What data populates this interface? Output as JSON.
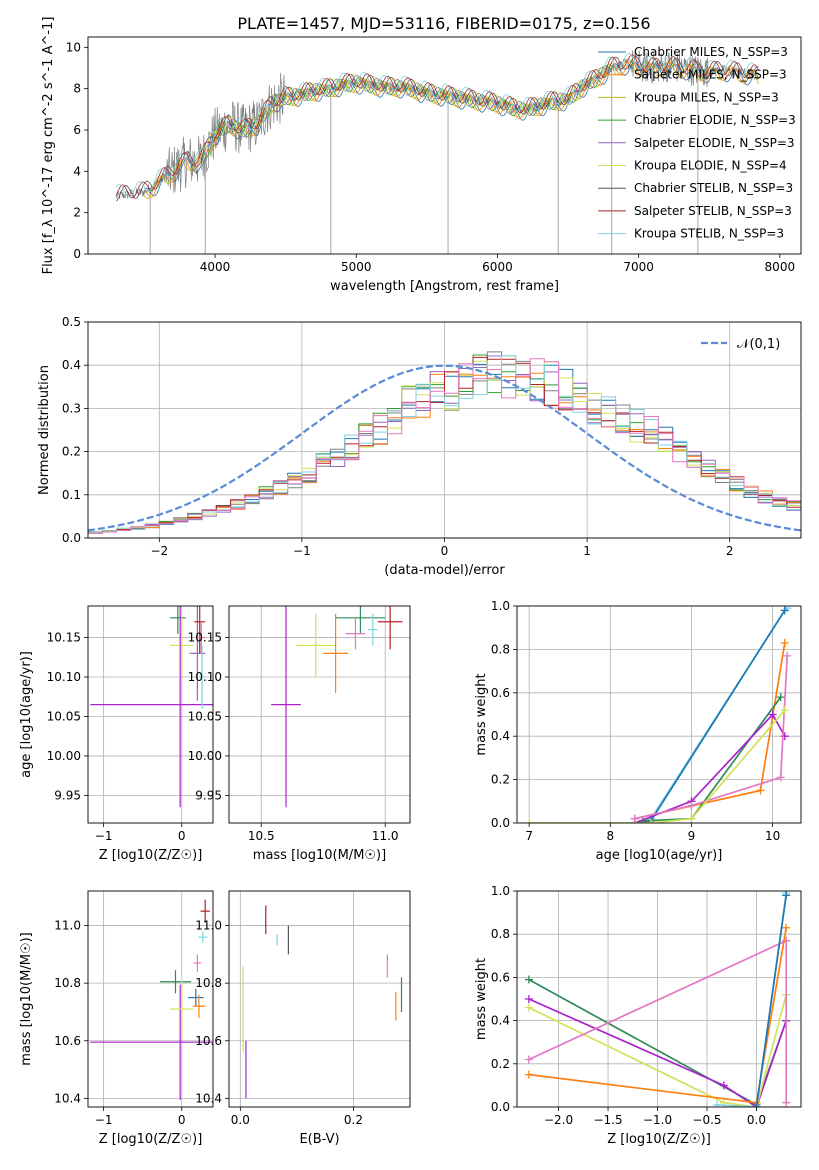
{
  "figure_title": "PLATE=1457, MJD=53116, FIBERID=0175, z=0.156",
  "chart_data": [
    {
      "id": "spectrum",
      "type": "line",
      "xlabel": "wavelength [Angstrom, rest frame]",
      "ylabel": "Flux [f_λ 10^-17 erg cm^-2 s^-1 A^-1]",
      "xlim": [
        3100,
        8150
      ],
      "ylim": [
        0,
        10.5
      ],
      "xticks": [
        4000,
        5000,
        6000,
        7000,
        8000
      ],
      "yticks": [
        0,
        2,
        4,
        6,
        8,
        10
      ],
      "legend_position": "top-right",
      "data_color": "#808080",
      "observed_knots": [
        [
          3300,
          2.8
        ],
        [
          3500,
          3.0
        ],
        [
          3600,
          3.5
        ],
        [
          3700,
          4.0
        ],
        [
          3800,
          4.5
        ],
        [
          3900,
          4.5
        ],
        [
          4000,
          5.8
        ],
        [
          4100,
          6.3
        ],
        [
          4200,
          6.0
        ],
        [
          4300,
          6.3
        ],
        [
          4400,
          7.3
        ],
        [
          4500,
          7.6
        ],
        [
          4600,
          7.7
        ],
        [
          4700,
          7.9
        ],
        [
          4800,
          8.0
        ],
        [
          4900,
          8.2
        ],
        [
          5000,
          8.3
        ],
        [
          5100,
          8.2
        ],
        [
          5200,
          8.1
        ],
        [
          5300,
          8.1
        ],
        [
          5400,
          8.0
        ],
        [
          5500,
          7.8
        ],
        [
          5600,
          7.7
        ],
        [
          5700,
          7.6
        ],
        [
          5800,
          7.5
        ],
        [
          5900,
          7.4
        ],
        [
          6000,
          7.3
        ],
        [
          6100,
          7.1
        ],
        [
          6200,
          7.0
        ],
        [
          6300,
          7.2
        ],
        [
          6400,
          7.4
        ],
        [
          6500,
          7.5
        ],
        [
          6600,
          8.1
        ],
        [
          6700,
          8.5
        ],
        [
          6800,
          9.0
        ],
        [
          6900,
          9.2
        ],
        [
          7000,
          9.1
        ],
        [
          7100,
          9.0
        ],
        [
          7200,
          9.1
        ],
        [
          7300,
          9.0
        ],
        [
          7400,
          8.9
        ],
        [
          7500,
          8.8
        ],
        [
          7600,
          8.9
        ],
        [
          7700,
          8.8
        ],
        [
          7800,
          8.7
        ],
        [
          7850,
          8.6
        ]
      ],
      "series": [
        {
          "name": "Chabrier MILES, N_SSP=3",
          "color": "#1f77b4",
          "x_range": [
            3500,
            7850
          ]
        },
        {
          "name": "Salpeter MILES, N_SSP=3",
          "color": "#ff7f0e",
          "x_range": [
            3500,
            7850
          ]
        },
        {
          "name": "Kroupa MILES, N_SSP=3",
          "color": "#bcbd22",
          "x_range": [
            3500,
            7850
          ]
        },
        {
          "name": "Chabrier ELODIE, N_SSP=3",
          "color": "#2ca02c",
          "x_range": [
            3900,
            6800
          ]
        },
        {
          "name": "Salpeter ELODIE, N_SSP=3",
          "color": "#9467bd",
          "x_range": [
            3900,
            6800
          ]
        },
        {
          "name": "Kroupa ELODIE, N_SSP=4",
          "color": "#d4e157",
          "x_range": [
            3900,
            6800
          ]
        },
        {
          "name": "Chabrier STELIB, N_SSP=3",
          "color": "#555555",
          "x_range": [
            3300,
            7850
          ]
        },
        {
          "name": "Salpeter STELIB, N_SSP=3",
          "color": "#b22222",
          "x_range": [
            3300,
            7850
          ]
        },
        {
          "name": "Kroupa STELIB, N_SSP=3",
          "color": "#7fd3e0",
          "x_range": [
            3300,
            7850
          ]
        }
      ]
    },
    {
      "id": "residuals",
      "type": "area",
      "xlabel": "(data-model)/error",
      "ylabel": "Normed distribution",
      "xlim": [
        -2.5,
        2.5
      ],
      "ylim": [
        0,
        0.5
      ],
      "xticks": [
        -2,
        -1,
        0,
        1,
        2
      ],
      "yticks": [
        0.0,
        0.1,
        0.2,
        0.3,
        0.4,
        0.5
      ],
      "grid": true,
      "legend": "𝒩(0,1)",
      "legend_position": "top-right",
      "gaussian_color": "#5b8bd6",
      "envelope": [
        [
          -2.5,
          0.01
        ],
        [
          -2.0,
          0.03
        ],
        [
          -1.5,
          0.07
        ],
        [
          -1.0,
          0.14
        ],
        [
          -0.5,
          0.24
        ],
        [
          -0.2,
          0.32
        ],
        [
          0.0,
          0.34
        ],
        [
          0.3,
          0.38
        ],
        [
          0.6,
          0.38
        ],
        [
          0.9,
          0.34
        ],
        [
          1.2,
          0.28
        ],
        [
          1.5,
          0.24
        ],
        [
          1.8,
          0.17
        ],
        [
          2.2,
          0.1
        ],
        [
          2.5,
          0.07
        ]
      ],
      "hist_colors": [
        "#808080",
        "#1f77b4",
        "#ff7f0e",
        "#2ca02c",
        "#9467bd",
        "#d4e157",
        "#b22222",
        "#7fd3e0",
        "#e377c2"
      ]
    },
    {
      "id": "age-vs-Z",
      "type": "scatter",
      "xlabel": "Z [log10(Z/Z☉)]",
      "ylabel": "age [log10(age/yr)]",
      "xlim": [
        -1.2,
        0.4
      ],
      "ylim": [
        9.915,
        10.19
      ],
      "xticks": [
        -1,
        0
      ],
      "yticks": [
        9.95,
        10.0,
        10.05,
        10.1,
        10.15
      ],
      "grid": true,
      "points": [
        {
          "x": -0.05,
          "y": 10.175,
          "xerr": 0.1,
          "yerr": 0.02,
          "color": "#2e8b57"
        },
        {
          "x": 0.0,
          "y": 10.14,
          "xerr": 0.15,
          "yerr": 0.04,
          "color": "#d4e157"
        },
        {
          "x": -0.02,
          "y": 10.065,
          "xerr": 1.15,
          "yerr": 0.13,
          "color": "#aa22cc"
        },
        {
          "x": 0.2,
          "y": 10.13,
          "xerr": 0.1,
          "yerr": 0.06,
          "color": "#9467bd"
        },
        {
          "x": 0.23,
          "y": 10.17,
          "xerr": 0.07,
          "yerr": 0.04,
          "color": "#b22222"
        },
        {
          "x": 0.25,
          "y": 10.15,
          "xerr": 0.05,
          "yerr": 0.02,
          "color": "#e377c2"
        },
        {
          "x": 0.26,
          "y": 10.1,
          "xerr": 0.03,
          "yerr": 0.04,
          "color": "#7fd3e0"
        }
      ]
    },
    {
      "id": "age-vs-mass",
      "type": "scatter",
      "xlabel": "mass [log10(M/M☉)]",
      "ylabel": "",
      "xlim": [
        10.37,
        11.1
      ],
      "ylim": [
        9.915,
        10.19
      ],
      "xticks": [
        10.5,
        11.0
      ],
      "yticks": [
        9.95,
        10.0,
        10.05,
        10.1,
        10.15
      ],
      "grid": true,
      "points": [
        {
          "x": 10.6,
          "y": 10.065,
          "xerr": 0.06,
          "yerr": 0.13,
          "color": "#aa22cc"
        },
        {
          "x": 10.72,
          "y": 10.14,
          "xerr": 0.08,
          "yerr": 0.04,
          "color": "#d4e157"
        },
        {
          "x": 10.8,
          "y": 10.13,
          "xerr": 0.05,
          "yerr": 0.05,
          "color": "#ff7f0e"
        },
        {
          "x": 10.9,
          "y": 10.175,
          "xerr": 0.1,
          "yerr": 0.02,
          "color": "#2e8b57"
        },
        {
          "x": 10.88,
          "y": 10.155,
          "xerr": 0.04,
          "yerr": 0.02,
          "color": "#e377c2"
        },
        {
          "x": 11.02,
          "y": 10.17,
          "xerr": 0.05,
          "yerr": 0.035,
          "color": "#b22222"
        },
        {
          "x": 10.95,
          "y": 10.16,
          "xerr": 0.02,
          "yerr": 0.02,
          "color": "#7fd3e0"
        }
      ]
    },
    {
      "id": "weight-vs-age",
      "type": "line",
      "xlabel": "age [log10(age/yr)]",
      "ylabel": "mass weight",
      "xlim": [
        6.85,
        10.35
      ],
      "ylim": [
        0,
        1.0
      ],
      "xticks": [
        7,
        8,
        9,
        10
      ],
      "yticks": [
        0.0,
        0.2,
        0.4,
        0.6,
        0.8,
        1.0
      ],
      "grid": true,
      "series": [
        {
          "color": "#7fd3e0",
          "points": [
            [
              8.3,
              0.0
            ],
            [
              8.5,
              0.02
            ],
            [
              10.15,
              0.98
            ],
            [
              10.18,
              0.99
            ]
          ]
        },
        {
          "color": "#1f77b4",
          "points": [
            [
              8.3,
              0.0
            ],
            [
              8.5,
              0.01
            ],
            [
              10.15,
              0.98
            ]
          ]
        },
        {
          "color": "#ff7f0e",
          "points": [
            [
              8.3,
              0.02
            ],
            [
              9.85,
              0.15
            ],
            [
              10.15,
              0.83
            ]
          ]
        },
        {
          "color": "#2e8b57",
          "points": [
            [
              8.4,
              0.01
            ],
            [
              9.0,
              0.02
            ],
            [
              10.1,
              0.58
            ]
          ]
        },
        {
          "color": "#aa22cc",
          "points": [
            [
              8.3,
              0.0
            ],
            [
              9.0,
              0.1
            ],
            [
              10.0,
              0.5
            ],
            [
              10.15,
              0.4
            ]
          ]
        },
        {
          "color": "#e377c2",
          "points": [
            [
              8.3,
              0.02
            ],
            [
              9.0,
              0.08
            ],
            [
              10.1,
              0.21
            ],
            [
              10.18,
              0.77
            ]
          ]
        },
        {
          "color": "#d4e157",
          "points": [
            [
              7.0,
              0.0
            ],
            [
              8.5,
              0.0
            ],
            [
              9.0,
              0.02
            ],
            [
              10.15,
              0.52
            ]
          ]
        }
      ]
    },
    {
      "id": "mass-vs-Z",
      "type": "scatter",
      "xlabel": "Z [log10(Z/Z☉)]",
      "ylabel": "mass [log10(M/M☉)]",
      "xlim": [
        -1.2,
        0.4
      ],
      "ylim": [
        10.37,
        11.12
      ],
      "xticks": [
        -1,
        0
      ],
      "yticks": [
        10.4,
        10.6,
        10.8,
        11.0
      ],
      "grid": true,
      "points": [
        {
          "x": -0.02,
          "y": 10.595,
          "xerr": 1.15,
          "yerr": 0.2,
          "color": "#aa22cc"
        },
        {
          "x": -0.08,
          "y": 10.805,
          "xerr": 0.2,
          "yerr": 0.04,
          "color": "#2e8b57"
        },
        {
          "x": 0.0,
          "y": 10.71,
          "xerr": 0.15,
          "yerr": 0.1,
          "color": "#d4e157"
        },
        {
          "x": 0.18,
          "y": 10.75,
          "xerr": 0.1,
          "yerr": 0.03,
          "color": "#1f77b4"
        },
        {
          "x": 0.22,
          "y": 10.72,
          "xerr": 0.08,
          "yerr": 0.04,
          "color": "#ff7f0e"
        },
        {
          "x": 0.2,
          "y": 10.87,
          "xerr": 0.05,
          "yerr": 0.03,
          "color": "#e377c2"
        },
        {
          "x": 0.27,
          "y": 10.96,
          "xerr": 0.06,
          "yerr": 0.02,
          "color": "#7fd3e0"
        },
        {
          "x": 0.3,
          "y": 11.05,
          "xerr": 0.06,
          "yerr": 0.04,
          "color": "#b22222"
        }
      ]
    },
    {
      "id": "mass-vs-EBV",
      "type": "scatter",
      "xlabel": "E(B-V)",
      "ylabel": "",
      "xlim": [
        -0.02,
        0.3
      ],
      "ylim": [
        10.37,
        11.12
      ],
      "xticks": [
        0.0,
        0.2
      ],
      "yticks": [
        10.4,
        10.6,
        10.8,
        11.0
      ],
      "grid": true,
      "points": [
        {
          "x": 0.005,
          "y": 10.71,
          "xerr": 0.0,
          "yerr": 0.15,
          "color": "#d4e157"
        },
        {
          "x": 0.01,
          "y": 10.5,
          "xerr": 0.0,
          "yerr": 0.1,
          "color": "#aa22cc"
        },
        {
          "x": 0.045,
          "y": 11.02,
          "xerr": 0.0,
          "yerr": 0.05,
          "color": "#b22222"
        },
        {
          "x": 0.065,
          "y": 10.95,
          "xerr": 0.0,
          "yerr": 0.02,
          "color": "#7fd3e0"
        },
        {
          "x": 0.085,
          "y": 10.95,
          "xerr": 0.0,
          "yerr": 0.05,
          "color": "#555555"
        },
        {
          "x": 0.26,
          "y": 10.86,
          "xerr": 0.0,
          "yerr": 0.04,
          "color": "#e377c2"
        },
        {
          "x": 0.275,
          "y": 10.72,
          "xerr": 0.0,
          "yerr": 0.05,
          "color": "#ff7f0e"
        },
        {
          "x": 0.285,
          "y": 10.76,
          "xerr": 0.0,
          "yerr": 0.06,
          "color": "#1f77b4"
        }
      ]
    },
    {
      "id": "weight-vs-Z",
      "type": "line",
      "xlabel": "Z [log10(Z/Z☉)]",
      "ylabel": "mass weight",
      "xlim": [
        -2.42,
        0.45
      ],
      "ylim": [
        0,
        1.0
      ],
      "xticks": [
        -2.0,
        -1.5,
        -1.0,
        -0.5,
        0.0
      ],
      "yticks": [
        0.0,
        0.2,
        0.4,
        0.6,
        0.8,
        1.0
      ],
      "grid": true,
      "series": [
        {
          "color": "#2e8b57",
          "points": [
            [
              -2.3,
              0.59
            ],
            [
              -0.0,
              0.01
            ],
            [
              0.3,
              0.4
            ]
          ]
        },
        {
          "color": "#aa22cc",
          "points": [
            [
              -2.3,
              0.5
            ],
            [
              -0.33,
              0.1
            ],
            [
              0.0,
              0.0
            ],
            [
              0.3,
              0.4
            ]
          ]
        },
        {
          "color": "#d4e157",
          "points": [
            [
              -2.3,
              0.46
            ],
            [
              -0.33,
              0.02
            ],
            [
              0.0,
              0.0
            ],
            [
              0.3,
              0.52
            ]
          ]
        },
        {
          "color": "#e377c2",
          "points": [
            [
              -2.3,
              0.22
            ],
            [
              0.3,
              0.77
            ],
            [
              0.3,
              0.02
            ]
          ]
        },
        {
          "color": "#ff7f0e",
          "points": [
            [
              -2.3,
              0.15
            ],
            [
              0.0,
              0.02
            ],
            [
              0.3,
              0.83
            ]
          ]
        },
        {
          "color": "#7fd3e0",
          "points": [
            [
              -0.4,
              0.01
            ],
            [
              0.0,
              0.0
            ],
            [
              0.3,
              0.99
            ]
          ]
        },
        {
          "color": "#1f77b4",
          "points": [
            [
              0.0,
              0.0
            ],
            [
              0.3,
              0.98
            ]
          ]
        }
      ]
    }
  ]
}
